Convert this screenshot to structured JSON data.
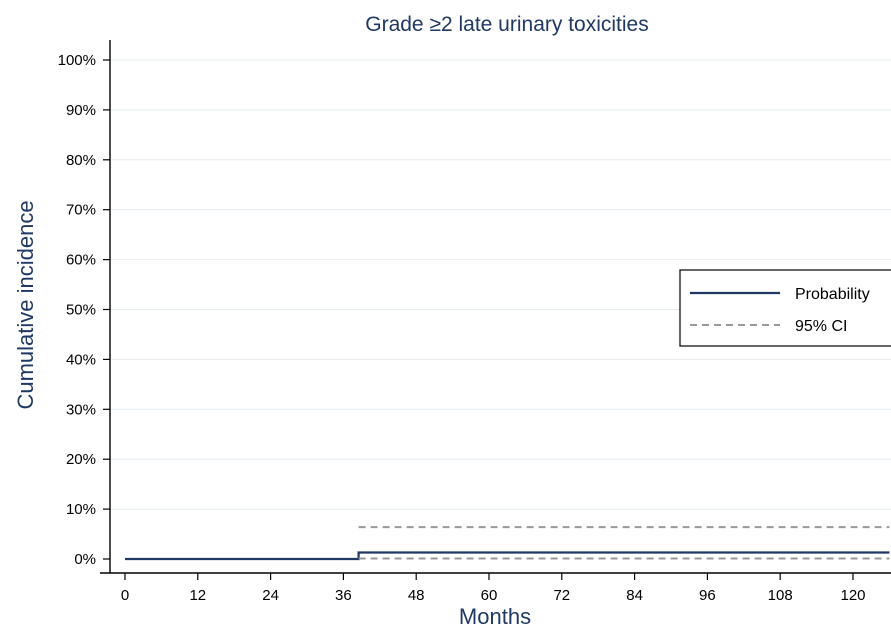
{
  "chart_data": {
    "type": "line",
    "title": "Grade ≥2 late urinary toxicities",
    "xlabel": "Months",
    "ylabel": "Cumulative incidence",
    "xlim": [
      0,
      126
    ],
    "ylim": [
      0,
      100
    ],
    "x_ticks": [
      0,
      12,
      24,
      36,
      48,
      60,
      72,
      84,
      96,
      108,
      120
    ],
    "y_ticks": [
      0,
      10,
      20,
      30,
      40,
      50,
      60,
      70,
      80,
      90,
      100
    ],
    "y_tick_labels": [
      "0%",
      "10%",
      "20%",
      "30%",
      "40%",
      "50%",
      "60%",
      "70%",
      "80%",
      "90%",
      "100%"
    ],
    "grid": true,
    "legend_position": "right",
    "series": [
      {
        "name": "Probability",
        "style": "solid",
        "color": "#1f3864",
        "x": [
          0,
          38.5,
          38.5,
          126
        ],
        "y": [
          0,
          0,
          1.3,
          1.3
        ]
      },
      {
        "name": "95% CI",
        "style": "dashed",
        "color": "#999999",
        "segments": [
          {
            "x": [
              38.5,
              126
            ],
            "y": [
              6.4,
              6.4
            ]
          },
          {
            "x": [
              38.5,
              126
            ],
            "y": [
              0.1,
              0.1
            ]
          }
        ]
      }
    ]
  },
  "colors": {
    "title": "#1f3864",
    "probability": "#1f3864",
    "ci": "#999999",
    "grid": "#e4ecef"
  }
}
